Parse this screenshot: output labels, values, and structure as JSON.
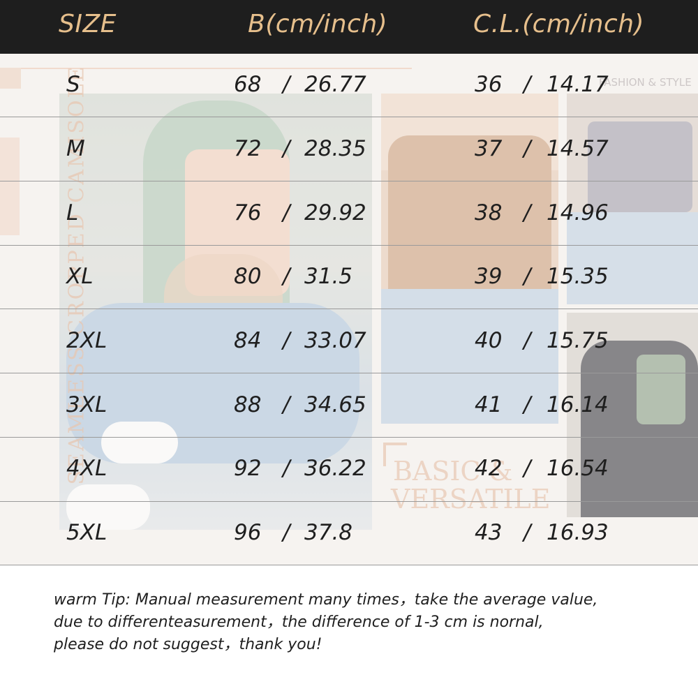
{
  "header": {
    "size_label": "SIZE",
    "bust_label": "B(cm/inch)",
    "length_label": "C.L.(cm/inch)",
    "background": "#1e1e1e",
    "text_color": "#e6bf8c"
  },
  "rows": [
    {
      "size": "S",
      "bust_cm": "68",
      "bust_in": "26.77",
      "len_cm": "36",
      "len_in": "14.17"
    },
    {
      "size": "M",
      "bust_cm": "72",
      "bust_in": "28.35",
      "len_cm": "37",
      "len_in": "14.57"
    },
    {
      "size": "L",
      "bust_cm": "76",
      "bust_in": "29.92",
      "len_cm": "38",
      "len_in": "14.96"
    },
    {
      "size": "XL",
      "bust_cm": "80",
      "bust_in": "31.5",
      "len_cm": "39",
      "len_in": "15.35"
    },
    {
      "size": "2XL",
      "bust_cm": "84",
      "bust_in": "33.07",
      "len_cm": "40",
      "len_in": "15.75"
    },
    {
      "size": "3XL",
      "bust_cm": "88",
      "bust_in": "34.65",
      "len_cm": "41",
      "len_in": "16.14"
    },
    {
      "size": "4XL",
      "bust_cm": "92",
      "bust_in": "36.22",
      "len_cm": "42",
      "len_in": "16.54"
    },
    {
      "size": "5XL",
      "bust_cm": "96",
      "bust_in": "37.8",
      "len_cm": "43",
      "len_in": "16.93"
    }
  ],
  "separator": "/",
  "decor": {
    "vertical_text": "SEAMLESS CROPPED CAMISOLE",
    "basic_line1": "BASIC &",
    "basic_line2": "VERSATILE",
    "fashion_text": "FASHION & STYLE"
  },
  "tip": {
    "line1": "warm Tip: Manual measurement many times，take the average value,",
    "line2": "due to differenteasurement，the difference of 1-3 cm is nornal,",
    "line3": "please do not suggest，thank you!"
  }
}
